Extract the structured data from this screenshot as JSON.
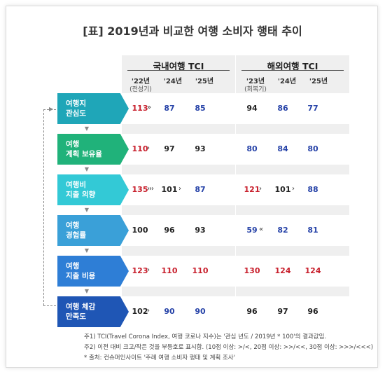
{
  "title": "[표] 2019년과 비교한 여행 소비자 행태 추이",
  "domestic": {
    "header": "국내여행 TCI",
    "years": [
      "'22년",
      "'24년",
      "'25년"
    ],
    "year_sub": "(전성기)"
  },
  "overseas": {
    "header": "해외여행 TCI",
    "years": [
      "'23년",
      "'24년",
      "'25년"
    ],
    "year_sub": "(회복기)"
  },
  "rows": [
    {
      "label1": "여행지",
      "label2": "관심도",
      "dom": [
        "113",
        "87",
        "85"
      ],
      "dom_arrow": "»",
      "ovs": [
        "94",
        "86",
        "77"
      ],
      "ovs_arrow": ""
    },
    {
      "label1": "여행",
      "label2": "계획 보유율",
      "dom": [
        "110",
        "97",
        "93"
      ],
      "dom_arrow": "›",
      "ovs": [
        "80",
        "84",
        "80"
      ],
      "ovs_arrow": ""
    },
    {
      "label1": "여행비",
      "label2": "지출 의향",
      "dom": [
        "135",
        "101",
        "87"
      ],
      "dom_arrow": "›››",
      "dom_arrow2": "›",
      "ovs": [
        "121",
        "101",
        "88"
      ],
      "ovs_arrow": "›",
      "ovs_arrow2": "›"
    },
    {
      "label1": "여행",
      "label2": "경험률",
      "dom": [
        "100",
        "96",
        "93"
      ],
      "dom_arrow": "",
      "ovs": [
        "59",
        "82",
        "81"
      ],
      "ovs_arrow": "«"
    },
    {
      "label1": "여행",
      "label2": "지출 비용",
      "dom": [
        "123",
        "110",
        "110"
      ],
      "dom_arrow": "›",
      "ovs": [
        "130",
        "124",
        "124"
      ],
      "ovs_arrow": ""
    },
    {
      "label1": "여행 체감",
      "label2": "만족도",
      "dom": [
        "102",
        "90",
        "90"
      ],
      "dom_arrow": "›",
      "ovs": [
        "96",
        "97",
        "96"
      ],
      "ovs_arrow": ""
    }
  ],
  "notes": [
    "주1) TCI(Travel Corona Index, 여행 코로나 지수)는 '관심 년도 / 2019년 * 100'의 결과값임.",
    "주2) 이전 대비 크고/작은 것을 부등호로 표시함. (10점 이상: >/<, 20점 이상: >>/<<, 30점 이상: >>>/<<<)",
    "* 출처: 컨슈머인사이트 '주례 여행 소비자 행태 및 계획 조사'"
  ],
  "colors": {
    "cat": [
      "#1fa6b8",
      "#20b27a",
      "#33c9d6",
      "#3aa0d8",
      "#2e7ed6",
      "#1f56b5"
    ],
    "red": "#c8202d",
    "blue": "#2743a8",
    "black": "#222222"
  },
  "value_colors": {
    "dom": [
      [
        "red",
        "blue",
        "blue"
      ],
      [
        "red",
        "black",
        "black"
      ],
      [
        "red",
        "black",
        "blue"
      ],
      [
        "black",
        "black",
        "black"
      ],
      [
        "red",
        "red",
        "red"
      ],
      [
        "black",
        "blue",
        "blue"
      ]
    ],
    "ovs": [
      [
        "black",
        "blue",
        "blue"
      ],
      [
        "blue",
        "blue",
        "blue"
      ],
      [
        "red",
        "black",
        "blue"
      ],
      [
        "blue",
        "blue",
        "blue"
      ],
      [
        "red",
        "red",
        "red"
      ],
      [
        "black",
        "black",
        "black"
      ]
    ]
  }
}
